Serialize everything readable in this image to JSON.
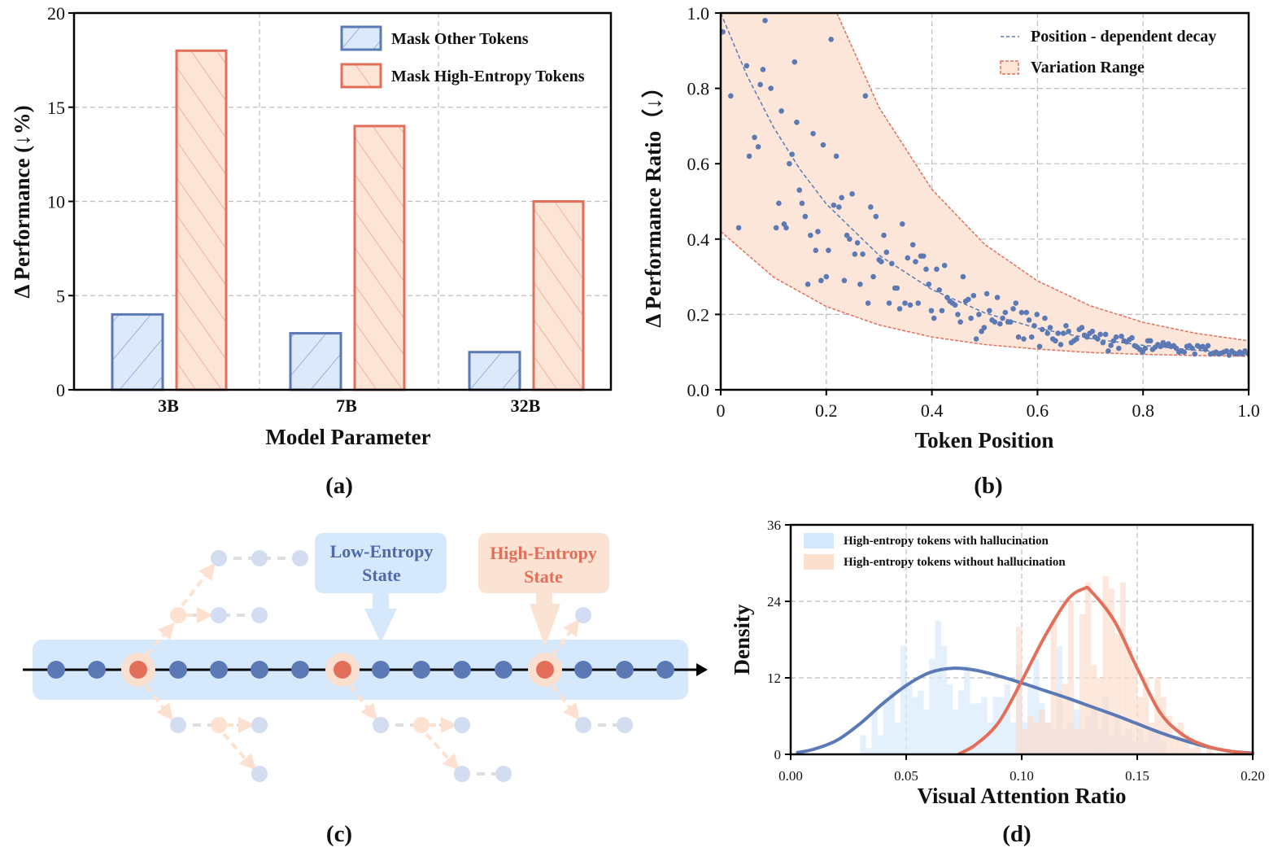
{
  "colors": {
    "blue": "#5b79b5",
    "blue_fill": "#dbe9fb",
    "red": "#e36f5a",
    "red_fill": "#fce5d7"
  },
  "chart_data": [
    {
      "panel": "(a)",
      "type": "bar",
      "categories": [
        "3B",
        "7B",
        "32B"
      ],
      "series": [
        {
          "name": "Mask Other Tokens",
          "values": [
            4,
            3,
            2
          ]
        },
        {
          "name": "Mask High-Entropy Tokens",
          "values": [
            18,
            14,
            10
          ]
        }
      ],
      "xlabel": "Model Parameter",
      "ylabel": "Δ Performance (↓%)",
      "ylim": [
        0,
        20
      ],
      "yticks": [
        "0",
        "5",
        "10",
        "15",
        "20"
      ],
      "grid": true,
      "legend": "top-right"
    },
    {
      "panel": "(b)",
      "type": "scatter",
      "xlabel": "Token Position",
      "ylabel": "Δ Performance Ratio（↓）",
      "xlim": [
        0,
        1
      ],
      "ylim": [
        0,
        1
      ],
      "xticks": [
        "0",
        "0.2",
        "0.4",
        "0.6",
        "0.8",
        "1.0"
      ],
      "yticks": [
        "0.0",
        "0.2",
        "0.4",
        "0.6",
        "0.8",
        "1.0"
      ],
      "grid": true,
      "legend": "top-right",
      "decay_name": "Position - dependent decay",
      "range_name": "Variation Range",
      "decay_curve": [
        [
          0,
          1.0
        ],
        [
          0.05,
          0.833
        ],
        [
          0.1,
          0.697
        ],
        [
          0.15,
          0.585
        ],
        [
          0.2,
          0.493
        ],
        [
          0.3,
          0.357
        ],
        [
          0.4,
          0.266
        ],
        [
          0.5,
          0.204
        ],
        [
          0.6,
          0.163
        ],
        [
          0.7,
          0.136
        ],
        [
          0.8,
          0.118
        ],
        [
          0.9,
          0.105
        ],
        [
          1.0,
          0.097
        ]
      ],
      "range_upper": [
        [
          0.22,
          1.0
        ],
        [
          0.3,
          0.749
        ],
        [
          0.4,
          0.532
        ],
        [
          0.5,
          0.386
        ],
        [
          0.6,
          0.289
        ],
        [
          0.7,
          0.223
        ],
        [
          0.8,
          0.179
        ],
        [
          0.9,
          0.15
        ],
        [
          1.0,
          0.13
        ]
      ],
      "range_lower": [
        [
          0,
          0.42
        ],
        [
          0.1,
          0.299
        ],
        [
          0.2,
          0.221
        ],
        [
          0.3,
          0.172
        ],
        [
          0.4,
          0.14
        ],
        [
          0.5,
          0.12
        ],
        [
          0.6,
          0.108
        ],
        [
          0.7,
          0.099
        ],
        [
          0.8,
          0.094
        ],
        [
          0.9,
          0.091
        ],
        [
          1.0,
          0.089
        ]
      ],
      "points": [
        [
          0.004,
          0.95
        ],
        [
          0.019,
          0.78
        ],
        [
          0.034,
          0.43
        ],
        [
          0.049,
          0.86
        ],
        [
          0.054,
          0.62
        ],
        [
          0.064,
          0.67
        ],
        [
          0.071,
          0.645
        ],
        [
          0.075,
          0.81
        ],
        [
          0.08,
          0.85
        ],
        [
          0.084,
          0.98
        ],
        [
          0.095,
          0.8
        ],
        [
          0.105,
          0.43
        ],
        [
          0.11,
          0.495
        ],
        [
          0.115,
          0.74
        ],
        [
          0.12,
          0.44
        ],
        [
          0.124,
          0.43
        ],
        [
          0.13,
          0.6
        ],
        [
          0.135,
          0.625
        ],
        [
          0.14,
          0.87
        ],
        [
          0.144,
          0.71
        ],
        [
          0.149,
          0.53
        ],
        [
          0.154,
          0.495
        ],
        [
          0.16,
          0.46
        ],
        [
          0.165,
          0.28
        ],
        [
          0.17,
          0.41
        ],
        [
          0.175,
          0.68
        ],
        [
          0.18,
          0.37
        ],
        [
          0.184,
          0.42
        ],
        [
          0.19,
          0.29
        ],
        [
          0.194,
          0.65
        ],
        [
          0.2,
          0.3
        ],
        [
          0.204,
          0.37
        ],
        [
          0.209,
          0.93
        ],
        [
          0.214,
          0.49
        ],
        [
          0.219,
          0.62
        ],
        [
          0.224,
          0.485
        ],
        [
          0.229,
          0.51
        ],
        [
          0.234,
          0.29
        ],
        [
          0.239,
          0.41
        ],
        [
          0.244,
          0.4
        ],
        [
          0.249,
          0.52
        ],
        [
          0.254,
          0.36
        ],
        [
          0.259,
          0.39
        ],
        [
          0.264,
          0.28
        ],
        [
          0.269,
          0.36
        ],
        [
          0.274,
          0.78
        ],
        [
          0.279,
          0.23
        ],
        [
          0.284,
          0.485
        ],
        [
          0.289,
          0.3
        ],
        [
          0.294,
          0.46
        ],
        [
          0.3,
          0.345
        ],
        [
          0.304,
          0.34
        ],
        [
          0.309,
          0.41
        ],
        [
          0.314,
          0.365
        ],
        [
          0.319,
          0.23
        ],
        [
          0.324,
          0.335
        ],
        [
          0.33,
          0.27
        ],
        [
          0.334,
          0.27
        ],
        [
          0.339,
          0.215
        ],
        [
          0.344,
          0.44
        ],
        [
          0.349,
          0.23
        ],
        [
          0.354,
          0.35
        ],
        [
          0.359,
          0.225
        ],
        [
          0.364,
          0.385
        ],
        [
          0.369,
          0.34
        ],
        [
          0.374,
          0.23
        ],
        [
          0.379,
          0.355
        ],
        [
          0.384,
          0.355
        ],
        [
          0.389,
          0.32
        ],
        [
          0.394,
          0.28
        ],
        [
          0.399,
          0.21
        ],
        [
          0.404,
          0.19
        ],
        [
          0.409,
          0.32
        ],
        [
          0.414,
          0.265
        ],
        [
          0.419,
          0.21
        ],
        [
          0.424,
          0.33
        ],
        [
          0.429,
          0.245
        ],
        [
          0.434,
          0.235
        ],
        [
          0.439,
          0.23
        ],
        [
          0.444,
          0.225
        ],
        [
          0.449,
          0.2
        ],
        [
          0.454,
          0.18
        ],
        [
          0.459,
          0.3
        ],
        [
          0.464,
          0.235
        ],
        [
          0.469,
          0.24
        ],
        [
          0.474,
          0.19
        ],
        [
          0.479,
          0.25
        ],
        [
          0.484,
          0.135
        ],
        [
          0.489,
          0.2
        ],
        [
          0.494,
          0.155
        ],
        [
          0.499,
          0.165
        ],
        [
          0.504,
          0.255
        ],
        [
          0.509,
          0.21
        ],
        [
          0.514,
          0.185
        ],
        [
          0.519,
          0.18
        ],
        [
          0.524,
          0.245
        ],
        [
          0.529,
          0.175
        ],
        [
          0.534,
          0.19
        ],
        [
          0.539,
          0.205
        ],
        [
          0.544,
          0.18
        ],
        [
          0.549,
          0.18
        ],
        [
          0.554,
          0.215
        ],
        [
          0.559,
          0.23
        ],
        [
          0.564,
          0.14
        ],
        [
          0.57,
          0.205
        ],
        [
          0.574,
          0.135
        ],
        [
          0.579,
          0.205
        ],
        [
          0.584,
          0.185
        ],
        [
          0.589,
          0.14
        ],
        [
          0.594,
          0.17
        ],
        [
          0.599,
          0.2
        ],
        [
          0.604,
          0.115
        ],
        [
          0.609,
          0.16
        ],
        [
          0.614,
          0.19
        ],
        [
          0.619,
          0.15
        ],
        [
          0.624,
          0.165
        ],
        [
          0.629,
          0.135
        ],
        [
          0.634,
          0.13
        ],
        [
          0.639,
          0.15
        ],
        [
          0.644,
          0.12
        ],
        [
          0.649,
          0.15
        ],
        [
          0.654,
          0.17
        ],
        [
          0.659,
          0.155
        ],
        [
          0.664,
          0.125
        ],
        [
          0.669,
          0.13
        ],
        [
          0.674,
          0.135
        ],
        [
          0.679,
          0.16
        ],
        [
          0.684,
          0.165
        ],
        [
          0.689,
          0.145
        ],
        [
          0.694,
          0.14
        ],
        [
          0.699,
          0.15
        ],
        [
          0.704,
          0.155
        ],
        [
          0.709,
          0.14
        ],
        [
          0.714,
          0.135
        ],
        [
          0.719,
          0.147
        ],
        [
          0.724,
          0.125
        ],
        [
          0.729,
          0.147
        ],
        [
          0.734,
          0.103
        ],
        [
          0.739,
          0.118
        ],
        [
          0.744,
          0.13
        ],
        [
          0.749,
          0.14
        ],
        [
          0.754,
          0.11
        ],
        [
          0.759,
          0.142
        ],
        [
          0.764,
          0.13
        ],
        [
          0.769,
          0.127
        ],
        [
          0.774,
          0.133
        ],
        [
          0.779,
          0.138
        ],
        [
          0.784,
          0.117
        ],
        [
          0.789,
          0.113
        ],
        [
          0.794,
          0.107
        ],
        [
          0.799,
          0.1
        ],
        [
          0.804,
          0.11
        ],
        [
          0.809,
          0.13
        ],
        [
          0.814,
          0.13
        ],
        [
          0.818,
          0.107
        ],
        [
          0.823,
          0.113
        ],
        [
          0.828,
          0.12
        ],
        [
          0.833,
          0.115
        ],
        [
          0.838,
          0.125
        ],
        [
          0.843,
          0.118
        ],
        [
          0.848,
          0.122
        ],
        [
          0.853,
          0.115
        ],
        [
          0.858,
          0.117
        ],
        [
          0.863,
          0.11
        ],
        [
          0.868,
          0.1
        ],
        [
          0.873,
          0.103
        ],
        [
          0.878,
          0.1
        ],
        [
          0.883,
          0.115
        ],
        [
          0.888,
          0.117
        ],
        [
          0.893,
          0.11
        ],
        [
          0.898,
          0.095
        ],
        [
          0.903,
          0.117
        ],
        [
          0.908,
          0.113
        ],
        [
          0.913,
          0.115
        ],
        [
          0.918,
          0.107
        ],
        [
          0.923,
          0.117
        ],
        [
          0.928,
          0.095
        ],
        [
          0.933,
          0.097
        ],
        [
          0.938,
          0.1
        ],
        [
          0.943,
          0.095
        ],
        [
          0.948,
          0.097
        ],
        [
          0.953,
          0.1
        ],
        [
          0.958,
          0.103
        ],
        [
          0.963,
          0.092
        ],
        [
          0.968,
          0.103
        ],
        [
          0.973,
          0.097
        ],
        [
          0.978,
          0.095
        ],
        [
          0.983,
          0.1
        ],
        [
          0.988,
          0.095
        ],
        [
          0.993,
          0.103
        ],
        [
          0.998,
          0.097
        ]
      ]
    },
    {
      "panel": "(d)",
      "type": "area",
      "xlabel": "Visual Attention Ratio",
      "ylabel": "Density",
      "xlim": [
        0,
        0.2
      ],
      "ylim": [
        0,
        36
      ],
      "xticks": [
        "0.00",
        "0.05",
        "0.10",
        "0.15",
        "0.20"
      ],
      "yticks": [
        "0",
        "12",
        "24",
        "36"
      ],
      "grid": true,
      "legend": "top-left",
      "series": [
        {
          "name": "High-entropy tokens with hallucination",
          "hist_start": 0.03,
          "hist_bin": 0.0025,
          "hist": [
            3,
            1,
            7,
            3,
            9,
            10,
            5,
            17,
            11,
            9,
            10,
            7,
            15,
            21,
            17,
            11,
            7,
            10,
            14,
            8,
            8,
            9,
            5,
            9,
            9,
            11,
            5,
            14,
            5,
            11,
            15,
            8,
            5,
            4,
            17,
            4,
            5,
            7,
            4,
            6,
            7,
            4,
            9,
            3,
            6,
            3,
            4,
            2,
            4,
            2,
            4,
            4,
            2
          ],
          "kde": [
            [
              0.003,
              0.3
            ],
            [
              0.01,
              0.8
            ],
            [
              0.02,
              2.2
            ],
            [
              0.03,
              4.8
            ],
            [
              0.04,
              8
            ],
            [
              0.05,
              10.8
            ],
            [
              0.06,
              12.8
            ],
            [
              0.07,
              13.5
            ],
            [
              0.08,
              13.2
            ],
            [
              0.09,
              12.3
            ],
            [
              0.1,
              11.2
            ],
            [
              0.11,
              10
            ],
            [
              0.12,
              8.8
            ],
            [
              0.13,
              7.5
            ],
            [
              0.14,
              6.2
            ],
            [
              0.15,
              4.8
            ],
            [
              0.16,
              3.4
            ],
            [
              0.17,
              2.2
            ],
            [
              0.18,
              1.2
            ],
            [
              0.19,
              0.5
            ],
            [
              0.2,
              0.2
            ]
          ]
        },
        {
          "name": "High-entropy tokens without hallucination",
          "hist_start": 0.0975,
          "hist_bin": 0.0025,
          "hist": [
            20,
            4,
            6,
            5,
            7,
            5,
            21,
            10,
            11,
            24,
            4,
            22,
            27,
            14,
            12,
            28,
            26,
            19,
            27,
            17,
            14,
            9,
            12,
            5,
            12,
            9,
            6,
            3,
            5,
            3,
            1,
            2,
            0,
            1
          ],
          "kde": [
            [
              0.073,
              0.1
            ],
            [
              0.08,
              1.5
            ],
            [
              0.09,
              5
            ],
            [
              0.1,
              11.5
            ],
            [
              0.11,
              18.5
            ],
            [
              0.12,
              24.3
            ],
            [
              0.127,
              26
            ],
            [
              0.13,
              25.6
            ],
            [
              0.14,
              21
            ],
            [
              0.15,
              13.5
            ],
            [
              0.16,
              6.5
            ],
            [
              0.17,
              3
            ],
            [
              0.18,
              1.3
            ],
            [
              0.19,
              0.5
            ],
            [
              0.2,
              0.1
            ]
          ]
        }
      ]
    }
  ],
  "diagram": {
    "low_label_1": "Low-Entropy",
    "low_label_2": "State",
    "high_label_1": "High-Entropy",
    "high_label_2": "State"
  },
  "captions": {
    "a": "(a)",
    "b": "(b)",
    "c": "(c)",
    "d": "(d)"
  }
}
